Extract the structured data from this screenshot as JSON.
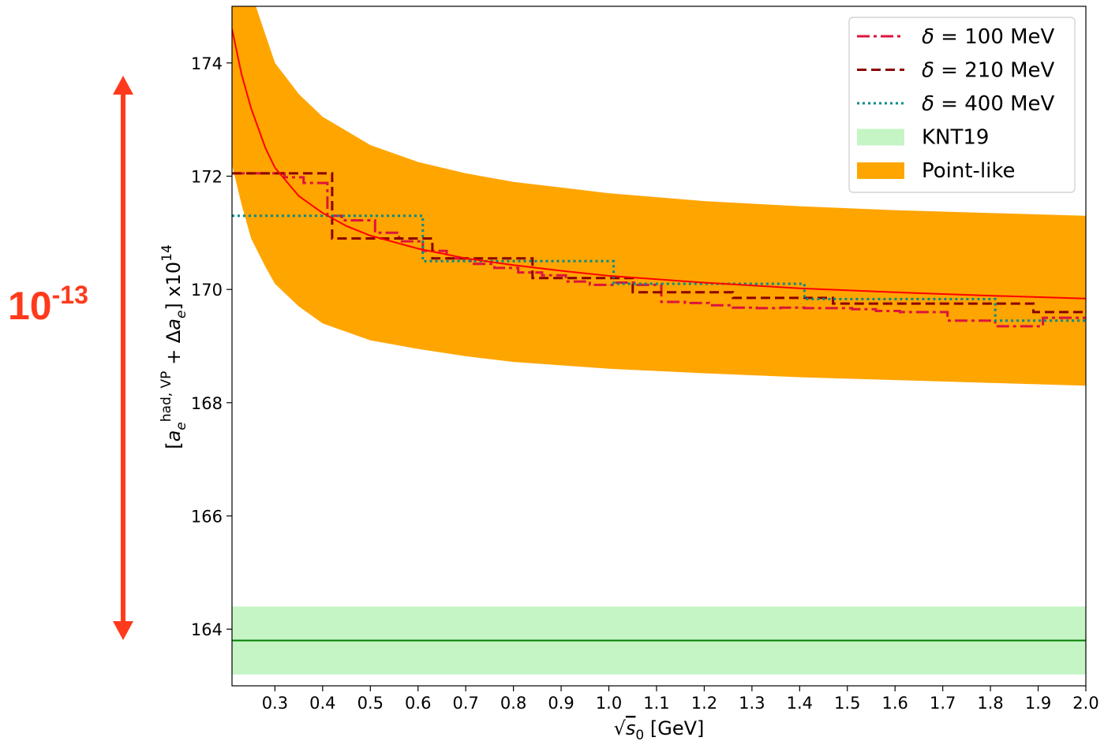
{
  "chart_data": {
    "type": "line",
    "xlabel_sqrt": "√",
    "xlabel_var": "s",
    "xlabel_sub": "0",
    "xlabel_unit": " [GeV]",
    "ylabel_open": "[",
    "ylabel_a": "a",
    "ylabel_sub_e": "e",
    "ylabel_sup": "had, VP",
    "ylabel_plus": " + Δ",
    "ylabel_a2": "a",
    "ylabel_sub_e2": "e",
    "ylabel_close": "] x10",
    "ylabel_exp": "14",
    "xlim": [
      0.21,
      2.0
    ],
    "ylim": [
      163.0,
      175.0
    ],
    "xticks": [
      0.3,
      0.4,
      0.5,
      0.6,
      0.7,
      0.8,
      0.9,
      1.0,
      1.1,
      1.2,
      1.3,
      1.4,
      1.5,
      1.6,
      1.7,
      1.8,
      1.9,
      2.0
    ],
    "xtick_labels": [
      "0.3",
      "0.4",
      "0.5",
      "0.6",
      "0.7",
      "0.8",
      "0.9",
      "1.0",
      "1.1",
      "1.2",
      "1.3",
      "1.4",
      "1.5",
      "1.6",
      "1.7",
      "1.8",
      "1.9",
      "2.0"
    ],
    "yticks": [
      164,
      166,
      168,
      170,
      172,
      174
    ],
    "ytick_labels": [
      "164",
      "166",
      "168",
      "170",
      "172",
      "174"
    ],
    "legend_position": "top-right",
    "legend": [
      {
        "label_prefix": "δ = ",
        "label_value": "100 MeV",
        "style": "dashdot",
        "color": "#dc143c"
      },
      {
        "label_prefix": "δ = ",
        "label_value": "210 MeV",
        "style": "dashed",
        "color": "#8b0000"
      },
      {
        "label_prefix": "δ = ",
        "label_value": "400 MeV",
        "style": "dotted",
        "color": "#008b8b"
      },
      {
        "label": "KNT19",
        "style": "patch",
        "color": "#c5f5c5"
      },
      {
        "label": "Point-like",
        "style": "patch",
        "color": "#ffa500"
      }
    ],
    "knt19": {
      "center": 163.8,
      "lower": 163.2,
      "upper": 164.4,
      "line_color": "#008000",
      "band_color": "#c5f5c5"
    },
    "point_like": {
      "color": "#ffa500",
      "upper": [
        [
          0.26,
          175.0
        ],
        [
          0.28,
          174.5
        ],
        [
          0.3,
          174.0
        ],
        [
          0.35,
          173.45
        ],
        [
          0.4,
          173.05
        ],
        [
          0.5,
          172.55
        ],
        [
          0.6,
          172.25
        ],
        [
          0.7,
          172.05
        ],
        [
          0.8,
          171.9
        ],
        [
          0.9,
          171.8
        ],
        [
          1.0,
          171.7
        ],
        [
          1.2,
          171.56
        ],
        [
          1.4,
          171.47
        ],
        [
          1.6,
          171.4
        ],
        [
          1.8,
          171.35
        ],
        [
          2.0,
          171.3
        ]
      ],
      "lower": [
        [
          0.21,
          172.2
        ],
        [
          0.23,
          171.5
        ],
        [
          0.25,
          170.9
        ],
        [
          0.28,
          170.4
        ],
        [
          0.3,
          170.1
        ],
        [
          0.35,
          169.7
        ],
        [
          0.4,
          169.4
        ],
        [
          0.5,
          169.1
        ],
        [
          0.6,
          168.95
        ],
        [
          0.7,
          168.82
        ],
        [
          0.8,
          168.72
        ],
        [
          1.0,
          168.6
        ],
        [
          1.2,
          168.52
        ],
        [
          1.4,
          168.45
        ],
        [
          1.6,
          168.4
        ],
        [
          1.8,
          168.35
        ],
        [
          2.0,
          168.3
        ]
      ]
    },
    "central_curve": {
      "color": "#ff0000",
      "points": [
        [
          0.21,
          174.6
        ],
        [
          0.23,
          173.8
        ],
        [
          0.25,
          173.2
        ],
        [
          0.28,
          172.5
        ],
        [
          0.3,
          172.15
        ],
        [
          0.35,
          171.65
        ],
        [
          0.4,
          171.35
        ],
        [
          0.45,
          171.12
        ],
        [
          0.5,
          170.95
        ],
        [
          0.6,
          170.72
        ],
        [
          0.7,
          170.55
        ],
        [
          0.8,
          170.43
        ],
        [
          0.9,
          170.33
        ],
        [
          1.0,
          170.24
        ],
        [
          1.2,
          170.12
        ],
        [
          1.4,
          170.02
        ],
        [
          1.6,
          169.95
        ],
        [
          1.8,
          169.89
        ],
        [
          2.0,
          169.84
        ]
      ]
    },
    "series": [
      {
        "name": "δ = 100 MeV",
        "style": "dashdot",
        "color": "#dc143c",
        "steps": [
          [
            0.21,
            172.05
          ],
          [
            0.32,
            171.98
          ],
          [
            0.36,
            171.88
          ],
          [
            0.41,
            171.3
          ],
          [
            0.44,
            171.22
          ],
          [
            0.51,
            171.0
          ],
          [
            0.56,
            170.85
          ],
          [
            0.61,
            170.68
          ],
          [
            0.66,
            170.55
          ],
          [
            0.71,
            170.45
          ],
          [
            0.76,
            170.38
          ],
          [
            0.81,
            170.3
          ],
          [
            0.86,
            170.25
          ],
          [
            0.91,
            170.14
          ],
          [
            0.96,
            170.08
          ],
          [
            1.01,
            170.12
          ],
          [
            1.06,
            170.08
          ],
          [
            1.11,
            169.78
          ],
          [
            1.16,
            169.76
          ],
          [
            1.21,
            169.72
          ],
          [
            1.26,
            169.68
          ],
          [
            1.31,
            169.67
          ],
          [
            1.36,
            169.68
          ],
          [
            1.41,
            169.67
          ],
          [
            1.46,
            169.67
          ],
          [
            1.51,
            169.65
          ],
          [
            1.56,
            169.62
          ],
          [
            1.61,
            169.6
          ],
          [
            1.66,
            169.6
          ],
          [
            1.71,
            169.45
          ],
          [
            1.76,
            169.45
          ],
          [
            1.81,
            169.35
          ],
          [
            1.86,
            169.35
          ],
          [
            1.91,
            169.5
          ],
          [
            1.96,
            169.5
          ]
        ],
        "end": 2.0
      },
      {
        "name": "δ = 210 MeV",
        "style": "dashed",
        "color": "#8b0000",
        "steps": [
          [
            0.21,
            172.05
          ],
          [
            0.42,
            170.9
          ],
          [
            0.63,
            170.55
          ],
          [
            0.84,
            170.2
          ],
          [
            1.05,
            169.95
          ],
          [
            1.26,
            169.85
          ],
          [
            1.47,
            169.75
          ],
          [
            1.68,
            169.75
          ],
          [
            1.89,
            169.6
          ]
        ],
        "end": 2.0
      },
      {
        "name": "δ = 400 MeV",
        "style": "dotted",
        "color": "#008b8b",
        "steps": [
          [
            0.21,
            171.3
          ],
          [
            0.61,
            170.5
          ],
          [
            1.01,
            170.1
          ],
          [
            1.41,
            169.83
          ],
          [
            1.81,
            169.45
          ]
        ],
        "end": 2.0
      }
    ]
  },
  "annotation": {
    "base": "10",
    "exponent": "-13",
    "color": "#ff3a1c",
    "arrow_range": [
      164.0,
      174.0
    ]
  }
}
